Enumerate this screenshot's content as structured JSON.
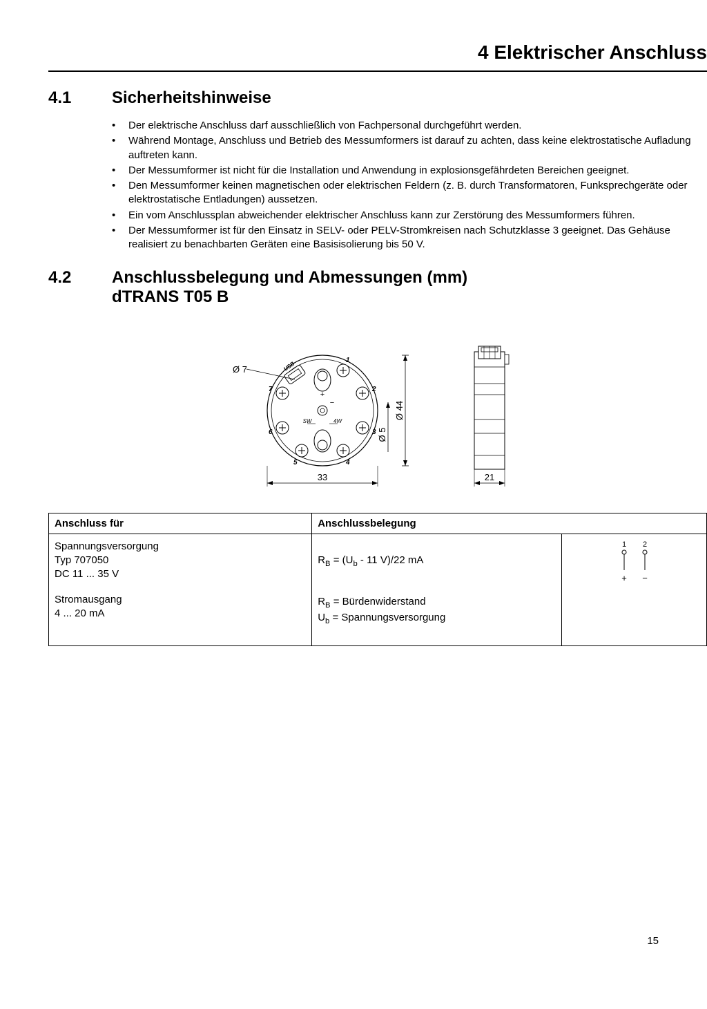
{
  "chapter": {
    "title": "4 Elektrischer Anschluss"
  },
  "section41": {
    "num": "4.1",
    "title": "Sicherheitshinweise",
    "bullets": [
      "Der elektrische Anschluss darf ausschließlich von Fachpersonal durchgeführt werden.",
      "Während Montage, Anschluss und Betrieb des Messumformers ist darauf zu achten, dass keine elektrostatische Aufladung auftreten kann.",
      "Der Messumformer ist nicht für die Installation und Anwendung in explosionsgefährdeten Bereichen geeignet.",
      "Den Messumformer keinen magnetischen oder elektrischen Feldern (z. B. durch Transformatoren, Funksprechgeräte oder elektrostatische Entladungen) aussetzen.",
      "Ein vom Anschlussplan abweichender elektrischer Anschluss kann zur Zerstörung des Messumformers führen.",
      "Der Messumformer ist für den Einsatz in SELV- oder PELV-Stromkreisen nach Schutzklasse 3 geeignet. Das Gehäuse realisiert zu benachbarten Geräten eine Basisisolierung bis 50 V."
    ]
  },
  "section42": {
    "num": "4.2",
    "title_line1": "Anschlussbelegung und Abmessungen (mm)",
    "title_line2": "dTRANS T05 B"
  },
  "figure": {
    "dim_diameter_hole": "Ø 7",
    "dim_diameter_outer": "Ø 44",
    "dim_diameter_center": "Ø 5",
    "dim_width_body": "33",
    "dim_width_side": "21",
    "terminals": [
      "1",
      "2",
      "3",
      "4",
      "5",
      "6",
      "7"
    ],
    "internal_labels": [
      "SW",
      "4W",
      "+",
      "−"
    ],
    "socket_label": "USB",
    "colors": {
      "stroke": "#000000",
      "fill": "#ffffff",
      "dim_line": "#000000",
      "font": "#000000"
    }
  },
  "table": {
    "headers": [
      "Anschluss für",
      "Anschlussbelegung"
    ],
    "row1_left": [
      "Spannungsversorgung",
      "Typ 707050",
      "DC 11 ... 35 V"
    ],
    "row1_mid_html": "R<sub>B</sub> = (U<sub>b</sub> - 11 V)/22 mA",
    "row2_left": [
      "Stromausgang",
      "4 ... 20 mA"
    ],
    "row2_mid_line1_html": "R<sub>B</sub> = Bürdenwiderstand",
    "row2_mid_line2_html": "U<sub>b</sub> = Spannungsversorgung",
    "pin_labels": [
      "1",
      "2"
    ],
    "pin_signs": [
      "+",
      "−"
    ]
  },
  "page_number": "15"
}
